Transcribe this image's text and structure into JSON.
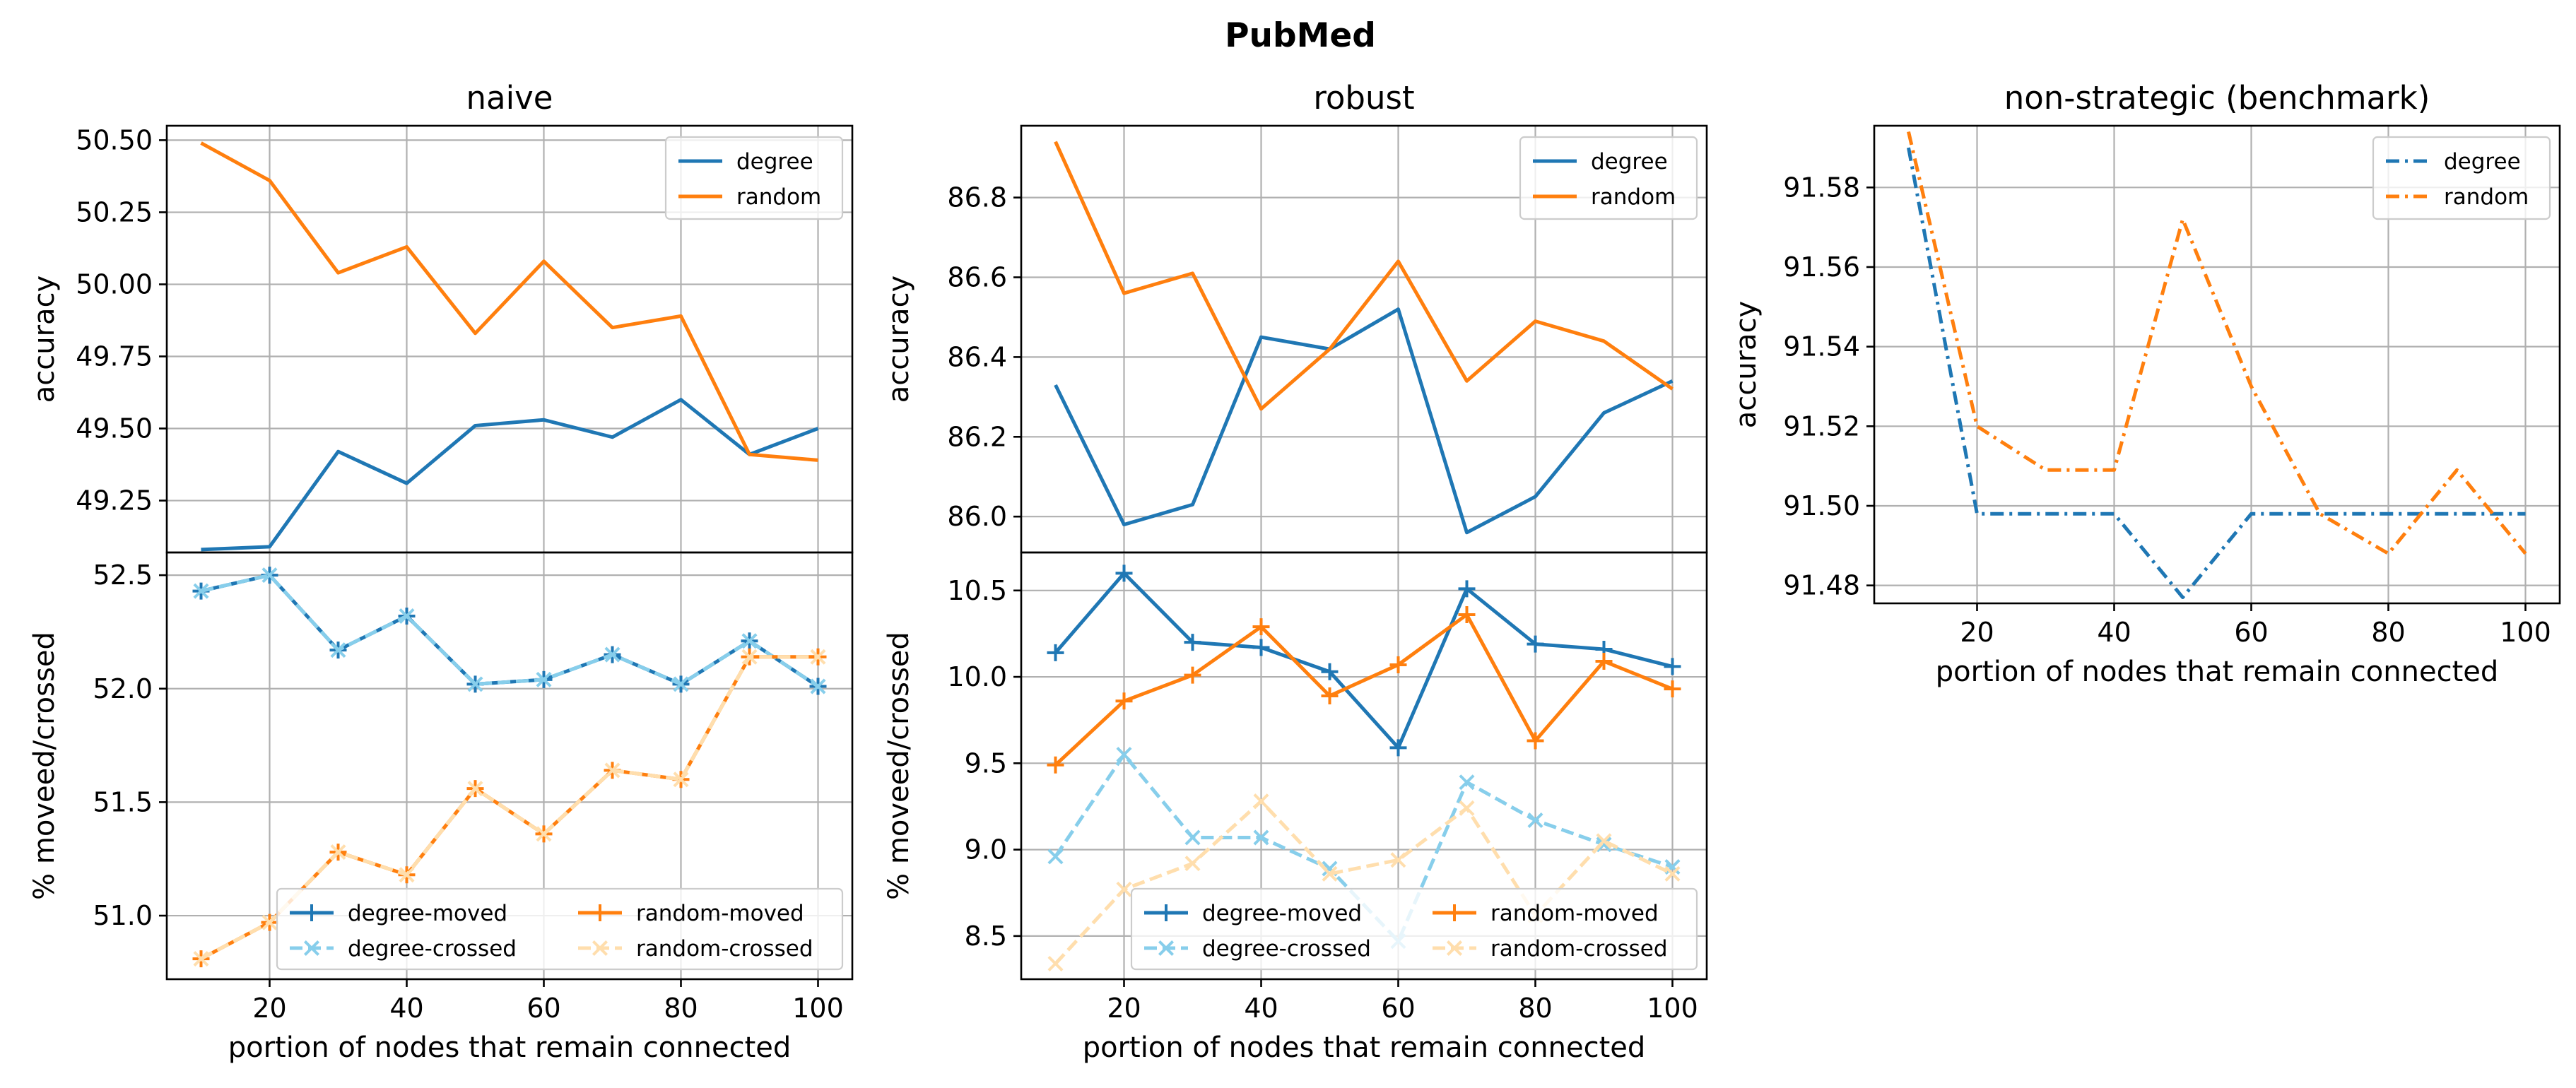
{
  "suptitle": "PubMed",
  "colors": {
    "degree": "#1f77b4",
    "random": "#ff7f0e",
    "degree_crossed": "#87ceeb",
    "random_crossed": "#ffdead"
  },
  "chart_data": [
    {
      "id": "naive-top",
      "type": "line",
      "title": "naive",
      "xlabel": "",
      "ylabel": "accuracy",
      "x": [
        10,
        20,
        30,
        40,
        50,
        60,
        70,
        80,
        90,
        100
      ],
      "xlim": [
        5,
        105
      ],
      "ylim": [
        49.07,
        50.55
      ],
      "yticks": [
        49.25,
        49.5,
        49.75,
        50.0,
        50.25,
        50.5
      ],
      "ytick_labels": [
        "49.25",
        "49.50",
        "49.75",
        "50.00",
        "50.25",
        "50.50"
      ],
      "xticks": [],
      "xtick_labels": [],
      "grid": true,
      "legend_position": "top-right",
      "legend_columns": 1,
      "series": [
        {
          "name": "degree",
          "color_key": "degree",
          "style": "solid",
          "marker": "none",
          "values": [
            49.08,
            49.09,
            49.42,
            49.31,
            49.51,
            49.53,
            49.47,
            49.6,
            49.41,
            49.5
          ]
        },
        {
          "name": "random",
          "color_key": "random",
          "style": "solid",
          "marker": "none",
          "values": [
            50.49,
            50.36,
            50.04,
            50.13,
            49.83,
            50.08,
            49.85,
            49.89,
            49.41,
            49.39
          ]
        }
      ]
    },
    {
      "id": "naive-bottom",
      "type": "line",
      "title": "",
      "xlabel": "portion of nodes that remain connected",
      "ylabel": "% moveed/crossed",
      "x": [
        10,
        20,
        30,
        40,
        50,
        60,
        70,
        80,
        90,
        100
      ],
      "xlim": [
        5,
        105
      ],
      "ylim": [
        50.72,
        52.6
      ],
      "yticks": [
        51.0,
        51.5,
        52.0,
        52.5
      ],
      "ytick_labels": [
        "51.0",
        "51.5",
        "52.0",
        "52.5"
      ],
      "xticks": [
        20,
        40,
        60,
        80,
        100
      ],
      "xtick_labels": [
        "20",
        "40",
        "60",
        "80",
        "100"
      ],
      "grid": true,
      "legend_position": "lower-right",
      "legend_columns": 2,
      "series": [
        {
          "name": "degree-moved",
          "color_key": "degree",
          "style": "solid",
          "marker": "plus",
          "values": [
            52.43,
            52.5,
            52.17,
            52.32,
            52.02,
            52.04,
            52.15,
            52.02,
            52.21,
            52.01
          ]
        },
        {
          "name": "degree-crossed",
          "color_key": "degree_crossed",
          "style": "dashed",
          "marker": "x",
          "values": [
            52.43,
            52.5,
            52.17,
            52.32,
            52.02,
            52.04,
            52.15,
            52.02,
            52.21,
            52.01
          ]
        },
        {
          "name": "random-moved",
          "color_key": "random",
          "style": "solid",
          "marker": "plus",
          "values": [
            50.81,
            50.97,
            51.28,
            51.18,
            51.56,
            51.36,
            51.64,
            51.6,
            52.14,
            52.14
          ]
        },
        {
          "name": "random-crossed",
          "color_key": "random_crossed",
          "style": "dashed",
          "marker": "x",
          "values": [
            50.81,
            50.97,
            51.28,
            51.18,
            51.56,
            51.36,
            51.64,
            51.6,
            52.14,
            52.14
          ]
        }
      ]
    },
    {
      "id": "robust-top",
      "type": "line",
      "title": "robust",
      "xlabel": "",
      "ylabel": "accuracy",
      "x": [
        10,
        20,
        30,
        40,
        50,
        60,
        70,
        80,
        90,
        100
      ],
      "xlim": [
        5,
        105
      ],
      "ylim": [
        85.91,
        86.98
      ],
      "yticks": [
        86.0,
        86.2,
        86.4,
        86.6,
        86.8
      ],
      "ytick_labels": [
        "86.0",
        "86.2",
        "86.4",
        "86.6",
        "86.8"
      ],
      "xticks": [],
      "xtick_labels": [],
      "grid": true,
      "legend_position": "top-right",
      "legend_columns": 1,
      "series": [
        {
          "name": "degree",
          "color_key": "degree",
          "style": "solid",
          "marker": "none",
          "values": [
            86.33,
            85.98,
            86.03,
            86.45,
            86.42,
            86.52,
            85.96,
            86.05,
            86.26,
            86.34
          ]
        },
        {
          "name": "random",
          "color_key": "random",
          "style": "solid",
          "marker": "none",
          "values": [
            86.94,
            86.56,
            86.61,
            86.27,
            86.42,
            86.64,
            86.34,
            86.49,
            86.44,
            86.32
          ]
        }
      ]
    },
    {
      "id": "robust-bottom",
      "type": "line",
      "title": "",
      "xlabel": "portion of nodes that remain connected",
      "ylabel": "% moveed/crossed",
      "x": [
        10,
        20,
        30,
        40,
        50,
        60,
        70,
        80,
        90,
        100
      ],
      "xlim": [
        5,
        105
      ],
      "ylim": [
        8.25,
        10.72
      ],
      "yticks": [
        8.5,
        9.0,
        9.5,
        10.0,
        10.5
      ],
      "ytick_labels": [
        "8.5",
        "9.0",
        "9.5",
        "10.0",
        "10.5"
      ],
      "xticks": [
        20,
        40,
        60,
        80,
        100
      ],
      "xtick_labels": [
        "20",
        "40",
        "60",
        "80",
        "100"
      ],
      "grid": true,
      "legend_position": "lower-right",
      "legend_columns": 2,
      "series": [
        {
          "name": "degree-moved",
          "color_key": "degree",
          "style": "solid",
          "marker": "plus",
          "values": [
            10.14,
            10.6,
            10.2,
            10.17,
            10.03,
            9.59,
            10.51,
            10.19,
            10.16,
            10.06
          ]
        },
        {
          "name": "degree-crossed",
          "color_key": "degree_crossed",
          "style": "dashed",
          "marker": "x",
          "values": [
            8.96,
            9.55,
            9.07,
            9.07,
            8.89,
            8.47,
            9.39,
            9.17,
            9.03,
            8.9
          ]
        },
        {
          "name": "random-moved",
          "color_key": "random",
          "style": "solid",
          "marker": "plus",
          "values": [
            9.49,
            9.86,
            10.01,
            10.29,
            9.89,
            10.07,
            10.36,
            9.63,
            10.09,
            9.93
          ]
        },
        {
          "name": "random-crossed",
          "color_key": "random_crossed",
          "style": "dashed",
          "marker": "x",
          "values": [
            8.34,
            8.77,
            8.92,
            9.28,
            8.86,
            8.94,
            9.24,
            8.62,
            9.05,
            8.86
          ]
        }
      ]
    },
    {
      "id": "benchmark",
      "type": "line",
      "title": "non-strategic (benchmark)",
      "xlabel": "portion of nodes that remain connected",
      "ylabel": "accuracy",
      "x": [
        10,
        20,
        30,
        40,
        50,
        60,
        70,
        80,
        90,
        100
      ],
      "xlim": [
        5,
        105
      ],
      "ylim": [
        91.4755,
        91.5955
      ],
      "yticks": [
        91.48,
        91.5,
        91.52,
        91.54,
        91.56,
        91.58
      ],
      "ytick_labels": [
        "91.48",
        "91.50",
        "91.52",
        "91.54",
        "91.56",
        "91.58"
      ],
      "xticks": [
        20,
        40,
        60,
        80,
        100
      ],
      "xtick_labels": [
        "20",
        "40",
        "60",
        "80",
        "100"
      ],
      "grid": true,
      "legend_position": "top-right",
      "legend_columns": 1,
      "series": [
        {
          "name": "degree",
          "color_key": "degree",
          "style": "dashdot",
          "marker": "none",
          "values": [
            91.59,
            91.498,
            91.498,
            91.498,
            91.477,
            91.498,
            91.498,
            91.498,
            91.498,
            91.498
          ]
        },
        {
          "name": "random",
          "color_key": "random",
          "style": "dashdot",
          "marker": "none",
          "values": [
            91.594,
            91.52,
            91.509,
            91.509,
            91.572,
            91.53,
            91.498,
            91.488,
            91.509,
            91.488
          ]
        }
      ]
    }
  ]
}
